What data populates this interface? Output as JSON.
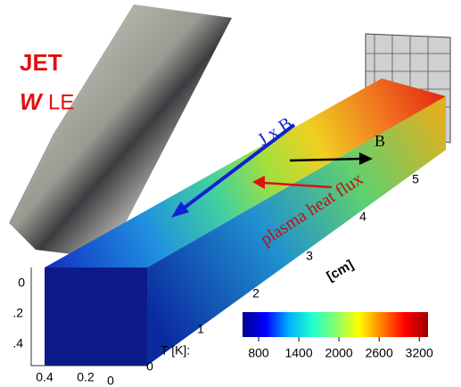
{
  "labels": {
    "jet": "JET",
    "w": "W",
    "le": "LE",
    "jxb": "J x B",
    "b": "B",
    "plasma": "plasma heat flux",
    "cm": "[cm]"
  },
  "length_ticks": [
    "0",
    "1",
    "2",
    "3",
    "4",
    "5"
  ],
  "height_ticks": [
    "0",
    ".2",
    ".4"
  ],
  "width_ticks": [
    "0.4",
    "0.2",
    "0"
  ],
  "colorbar": {
    "label": "T [K]:",
    "range": [
      560,
      3330
    ],
    "ticks": [
      800,
      1400,
      2000,
      2600,
      3200
    ],
    "colors": [
      "#00008f",
      "#0000ff",
      "#00b0ff",
      "#20ffd0",
      "#80ff70",
      "#ffff00",
      "#ff8000",
      "#ff0000",
      "#a00000"
    ]
  }
}
